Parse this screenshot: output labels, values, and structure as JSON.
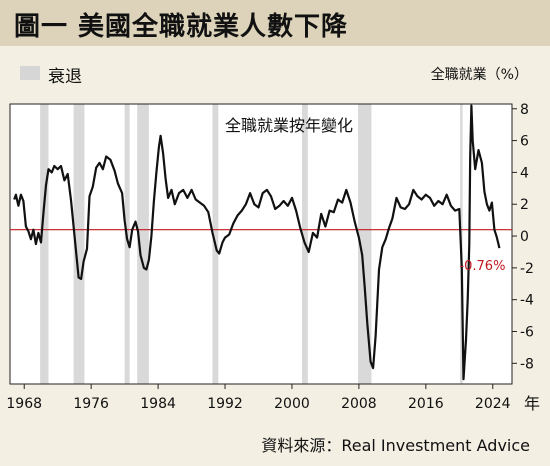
{
  "header": {
    "title": "圖一  美國全職就業人數下降"
  },
  "legend": {
    "recession_label": "衰退"
  },
  "footer": {
    "source": "資料來源：Real Investment Advice"
  },
  "colors": {
    "background": "#f3efe3",
    "header_bg": "#ddd3bb",
    "plot_bg": "#ffffff",
    "recession": "#d9d9d9",
    "line": "#111111",
    "reference": "#c0191f",
    "annotation": "#c0191f"
  },
  "chart_data": {
    "type": "line",
    "title": "全職就業按年變化",
    "ylabel": "全職就業（%）",
    "xlabel": "年",
    "xlim": [
      1966.3,
      2026.3
    ],
    "ylim": [
      -9.3,
      8.3
    ],
    "x_ticks": [
      1968,
      1976,
      1984,
      1992,
      2000,
      2008,
      2016,
      2024
    ],
    "y_ticks": [
      8,
      6,
      4,
      2,
      0,
      -2,
      -4,
      -6,
      -8
    ],
    "y_tick_labels": [
      "8",
      "6",
      "4",
      "2",
      "0",
      "-2",
      "-4",
      "-6",
      "-8"
    ],
    "grid": false,
    "legend_position": "top-left",
    "recessions": [
      [
        1969.9,
        1970.9
      ],
      [
        1973.9,
        1975.2
      ],
      [
        1980.0,
        1980.6
      ],
      [
        1981.5,
        1982.9
      ],
      [
        1990.5,
        1991.2
      ],
      [
        2001.2,
        2001.9
      ],
      [
        2007.9,
        2009.5
      ],
      [
        2020.1,
        2020.4
      ]
    ],
    "reference_line": {
      "y": 0.4
    },
    "annotation": {
      "text": "-0.76%",
      "x": 2024.8,
      "y": -0.76
    },
    "series": [
      {
        "values": [
          [
            1966.8,
            2.3
          ],
          [
            1967.0,
            2.6
          ],
          [
            1967.3,
            1.9
          ],
          [
            1967.6,
            2.6
          ],
          [
            1967.9,
            2.2
          ],
          [
            1968.2,
            0.6
          ],
          [
            1968.5,
            0.3
          ],
          [
            1968.8,
            -0.2
          ],
          [
            1969.1,
            0.4
          ],
          [
            1969.4,
            -0.5
          ],
          [
            1969.7,
            0.2
          ],
          [
            1970.0,
            -0.4
          ],
          [
            1970.3,
            1.5
          ],
          [
            1970.6,
            3.2
          ],
          [
            1970.9,
            4.2
          ],
          [
            1971.3,
            4.0
          ],
          [
            1971.6,
            4.4
          ],
          [
            1972.0,
            4.2
          ],
          [
            1972.4,
            4.4
          ],
          [
            1972.8,
            3.5
          ],
          [
            1973.2,
            3.9
          ],
          [
            1973.6,
            2.2
          ],
          [
            1973.9,
            0.6
          ],
          [
            1974.2,
            -1.0
          ],
          [
            1974.5,
            -2.6
          ],
          [
            1974.8,
            -2.7
          ],
          [
            1975.1,
            -1.6
          ],
          [
            1975.5,
            -0.8
          ],
          [
            1975.8,
            2.5
          ],
          [
            1976.2,
            3.1
          ],
          [
            1976.6,
            4.3
          ],
          [
            1977.0,
            4.6
          ],
          [
            1977.4,
            4.2
          ],
          [
            1977.8,
            5.0
          ],
          [
            1978.3,
            4.8
          ],
          [
            1978.8,
            4.1
          ],
          [
            1979.2,
            3.3
          ],
          [
            1979.7,
            2.7
          ],
          [
            1980.0,
            1.0
          ],
          [
            1980.3,
            -0.2
          ],
          [
            1980.6,
            -0.7
          ],
          [
            1980.9,
            0.4
          ],
          [
            1981.3,
            0.9
          ],
          [
            1981.6,
            0.3
          ],
          [
            1981.9,
            -1.2
          ],
          [
            1982.3,
            -2.0
          ],
          [
            1982.6,
            -2.1
          ],
          [
            1982.9,
            -1.5
          ],
          [
            1983.2,
            0.0
          ],
          [
            1983.5,
            2.2
          ],
          [
            1983.8,
            4.0
          ],
          [
            1984.1,
            5.6
          ],
          [
            1984.3,
            6.3
          ],
          [
            1984.6,
            5.2
          ],
          [
            1984.9,
            3.6
          ],
          [
            1985.2,
            2.4
          ],
          [
            1985.6,
            2.9
          ],
          [
            1986.0,
            2.0
          ],
          [
            1986.5,
            2.7
          ],
          [
            1987.0,
            2.9
          ],
          [
            1987.5,
            2.4
          ],
          [
            1988.0,
            2.9
          ],
          [
            1988.5,
            2.3
          ],
          [
            1989.0,
            2.1
          ],
          [
            1989.5,
            1.9
          ],
          [
            1990.0,
            1.5
          ],
          [
            1990.5,
            0.2
          ],
          [
            1991.0,
            -0.9
          ],
          [
            1991.3,
            -1.1
          ],
          [
            1991.7,
            -0.4
          ],
          [
            1992.0,
            -0.1
          ],
          [
            1992.5,
            0.1
          ],
          [
            1993.0,
            0.8
          ],
          [
            1993.5,
            1.3
          ],
          [
            1994.0,
            1.6
          ],
          [
            1994.5,
            2.0
          ],
          [
            1995.0,
            2.7
          ],
          [
            1995.5,
            2.0
          ],
          [
            1996.0,
            1.8
          ],
          [
            1996.5,
            2.7
          ],
          [
            1997.0,
            2.9
          ],
          [
            1997.5,
            2.5
          ],
          [
            1998.0,
            1.7
          ],
          [
            1998.5,
            1.9
          ],
          [
            1999.0,
            2.2
          ],
          [
            1999.5,
            1.9
          ],
          [
            2000.0,
            2.4
          ],
          [
            2000.5,
            1.6
          ],
          [
            2001.0,
            0.5
          ],
          [
            2001.5,
            -0.4
          ],
          [
            2002.0,
            -1.0
          ],
          [
            2002.5,
            0.2
          ],
          [
            2003.0,
            -0.1
          ],
          [
            2003.5,
            1.4
          ],
          [
            2004.0,
            0.6
          ],
          [
            2004.5,
            1.6
          ],
          [
            2005.0,
            1.5
          ],
          [
            2005.5,
            2.3
          ],
          [
            2006.0,
            2.1
          ],
          [
            2006.5,
            2.9
          ],
          [
            2007.0,
            2.1
          ],
          [
            2007.5,
            0.9
          ],
          [
            2008.0,
            -0.1
          ],
          [
            2008.4,
            -1.2
          ],
          [
            2008.7,
            -3.2
          ],
          [
            2009.0,
            -5.5
          ],
          [
            2009.4,
            -7.9
          ],
          [
            2009.7,
            -8.3
          ],
          [
            2010.0,
            -6.3
          ],
          [
            2010.4,
            -2.1
          ],
          [
            2010.8,
            -0.7
          ],
          [
            2011.2,
            -0.2
          ],
          [
            2011.6,
            0.5
          ],
          [
            2012.0,
            1.1
          ],
          [
            2012.5,
            2.4
          ],
          [
            2013.0,
            1.8
          ],
          [
            2013.5,
            1.7
          ],
          [
            2014.0,
            2.0
          ],
          [
            2014.5,
            2.9
          ],
          [
            2015.0,
            2.5
          ],
          [
            2015.5,
            2.3
          ],
          [
            2016.0,
            2.6
          ],
          [
            2016.5,
            2.4
          ],
          [
            2017.0,
            1.9
          ],
          [
            2017.5,
            2.2
          ],
          [
            2018.0,
            2.0
          ],
          [
            2018.5,
            2.6
          ],
          [
            2019.0,
            1.9
          ],
          [
            2019.5,
            1.6
          ],
          [
            2020.0,
            1.7
          ],
          [
            2020.3,
            -2.0
          ],
          [
            2020.5,
            -9.0
          ],
          [
            2020.8,
            -6.5
          ],
          [
            2021.0,
            -4.0
          ],
          [
            2021.2,
            -0.5
          ],
          [
            2021.3,
            5.0
          ],
          [
            2021.45,
            8.2
          ],
          [
            2021.6,
            6.0
          ],
          [
            2021.9,
            4.2
          ],
          [
            2022.3,
            5.4
          ],
          [
            2022.7,
            4.6
          ],
          [
            2023.0,
            2.8
          ],
          [
            2023.3,
            2.0
          ],
          [
            2023.6,
            1.6
          ],
          [
            2023.9,
            2.1
          ],
          [
            2024.2,
            0.4
          ],
          [
            2024.5,
            -0.1
          ],
          [
            2024.8,
            -0.76
          ]
        ]
      }
    ]
  }
}
